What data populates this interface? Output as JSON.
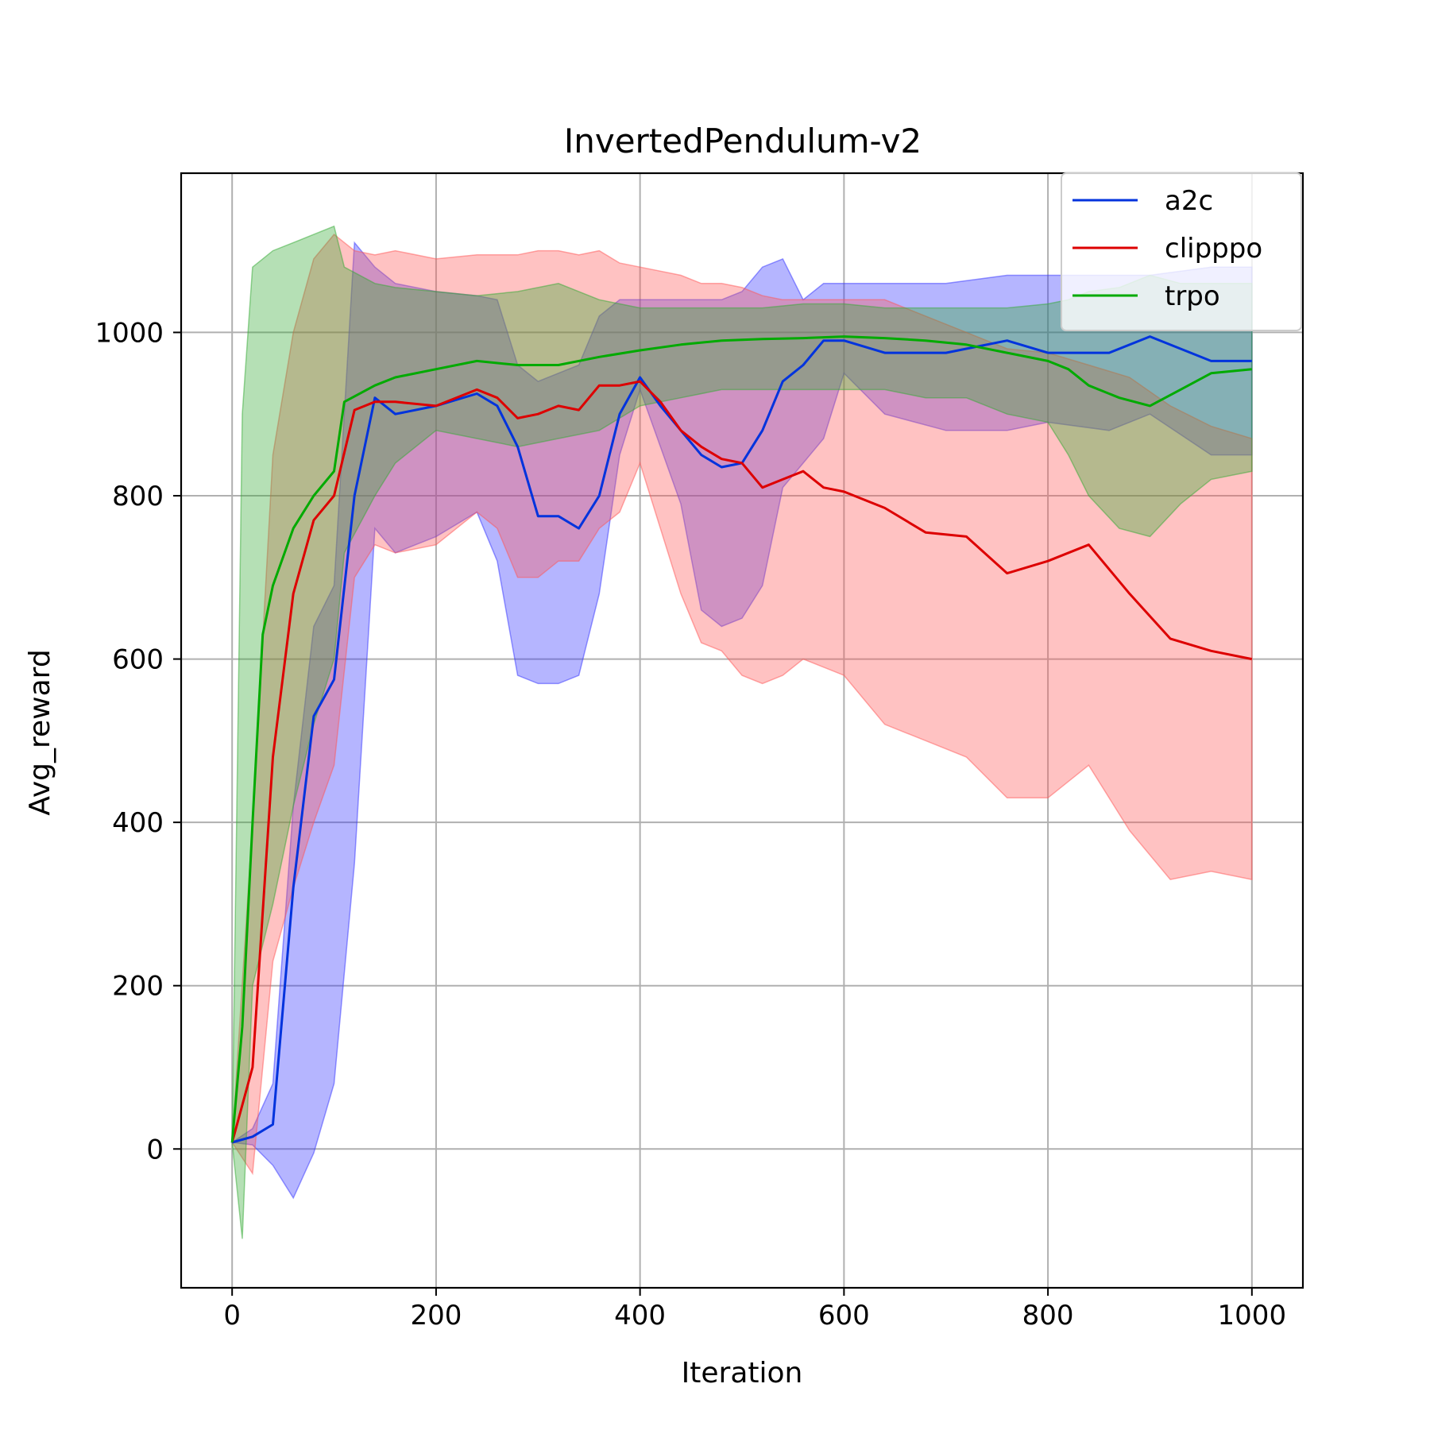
{
  "chart_data": {
    "type": "line",
    "title": "InvertedPendulum-v2",
    "xlabel": "Iteration",
    "ylabel": "Avg_reward",
    "xlim": [
      -50,
      1050
    ],
    "ylim": [
      -170,
      1195
    ],
    "xticks": [
      0,
      200,
      400,
      600,
      800,
      1000
    ],
    "yticks": [
      0,
      200,
      400,
      600,
      800,
      1000
    ],
    "grid": true,
    "legend_position": "top-right",
    "series": [
      {
        "name": "a2c",
        "color": "#0033dd",
        "band_color": "#3333ff",
        "x": [
          0,
          20,
          40,
          60,
          80,
          100,
          120,
          140,
          160,
          200,
          240,
          260,
          280,
          300,
          320,
          340,
          360,
          380,
          400,
          420,
          440,
          460,
          480,
          500,
          520,
          540,
          560,
          580,
          600,
          640,
          700,
          760,
          800,
          860,
          900,
          960,
          1000
        ],
        "y": [
          8,
          15,
          30,
          320,
          530,
          575,
          800,
          920,
          900,
          910,
          925,
          910,
          860,
          775,
          775,
          760,
          800,
          900,
          945,
          910,
          880,
          850,
          835,
          840,
          880,
          940,
          960,
          990,
          990,
          975,
          975,
          990,
          975,
          975,
          995,
          965,
          965
        ],
        "lower": [
          8,
          5,
          -20,
          -60,
          -5,
          80,
          350,
          760,
          730,
          750,
          780,
          720,
          580,
          570,
          570,
          580,
          680,
          850,
          930,
          860,
          790,
          660,
          640,
          650,
          690,
          810,
          840,
          870,
          950,
          900,
          880,
          880,
          890,
          880,
          900,
          850,
          850
        ],
        "upper": [
          8,
          25,
          80,
          420,
          640,
          690,
          1110,
          1080,
          1060,
          1050,
          1045,
          1040,
          960,
          940,
          950,
          960,
          1020,
          1040,
          1040,
          1040,
          1040,
          1040,
          1040,
          1050,
          1080,
          1090,
          1040,
          1060,
          1060,
          1060,
          1060,
          1070,
          1070,
          1070,
          1070,
          1080,
          1080
        ]
      },
      {
        "name": "clipppo",
        "color": "#dd0000",
        "band_color": "#ff5555",
        "x": [
          0,
          20,
          40,
          60,
          80,
          100,
          120,
          140,
          160,
          200,
          240,
          260,
          280,
          300,
          320,
          340,
          360,
          380,
          400,
          420,
          440,
          460,
          480,
          500,
          520,
          540,
          560,
          580,
          600,
          640,
          680,
          720,
          760,
          800,
          840,
          880,
          920,
          960,
          1000
        ],
        "y": [
          8,
          100,
          480,
          680,
          770,
          800,
          905,
          915,
          915,
          910,
          930,
          920,
          895,
          900,
          910,
          905,
          935,
          935,
          940,
          915,
          880,
          860,
          845,
          840,
          810,
          820,
          830,
          810,
          805,
          785,
          755,
          750,
          705,
          720,
          740,
          680,
          625,
          610,
          600
        ],
        "lower": [
          8,
          -30,
          230,
          320,
          400,
          470,
          700,
          740,
          730,
          740,
          780,
          760,
          700,
          700,
          720,
          720,
          760,
          780,
          840,
          760,
          680,
          620,
          610,
          580,
          570,
          580,
          600,
          590,
          580,
          520,
          500,
          480,
          430,
          430,
          470,
          390,
          330,
          340,
          330
        ],
        "upper": [
          8,
          400,
          850,
          1000,
          1090,
          1120,
          1100,
          1095,
          1100,
          1090,
          1095,
          1095,
          1095,
          1100,
          1100,
          1095,
          1100,
          1085,
          1080,
          1075,
          1070,
          1060,
          1060,
          1055,
          1045,
          1040,
          1040,
          1040,
          1040,
          1040,
          1020,
          1000,
          980,
          975,
          960,
          945,
          910,
          885,
          870
        ]
      },
      {
        "name": "trpo",
        "color": "#00aa00",
        "band_color": "#33aa33",
        "x": [
          0,
          10,
          20,
          30,
          40,
          60,
          80,
          100,
          110,
          140,
          160,
          200,
          240,
          280,
          320,
          360,
          400,
          440,
          480,
          520,
          560,
          600,
          640,
          680,
          720,
          760,
          800,
          820,
          840,
          870,
          900,
          930,
          960,
          1000
        ],
        "y": [
          8,
          150,
          400,
          630,
          690,
          760,
          800,
          830,
          915,
          935,
          945,
          955,
          965,
          960,
          960,
          970,
          978,
          985,
          990,
          992,
          993,
          995,
          993,
          990,
          985,
          975,
          965,
          955,
          935,
          920,
          910,
          930,
          950,
          955
        ],
        "lower": [
          8,
          -110,
          200,
          250,
          300,
          420,
          520,
          600,
          730,
          800,
          840,
          880,
          870,
          860,
          870,
          880,
          910,
          920,
          930,
          930,
          930,
          930,
          930,
          920,
          920,
          900,
          890,
          850,
          800,
          760,
          750,
          790,
          820,
          830
        ],
        "upper": [
          8,
          900,
          1080,
          1090,
          1100,
          1110,
          1120,
          1130,
          1080,
          1060,
          1055,
          1050,
          1045,
          1050,
          1060,
          1040,
          1030,
          1030,
          1030,
          1030,
          1035,
          1035,
          1030,
          1030,
          1030,
          1030,
          1035,
          1040,
          1050,
          1055,
          1070,
          1060,
          1060,
          1060
        ]
      }
    ]
  }
}
